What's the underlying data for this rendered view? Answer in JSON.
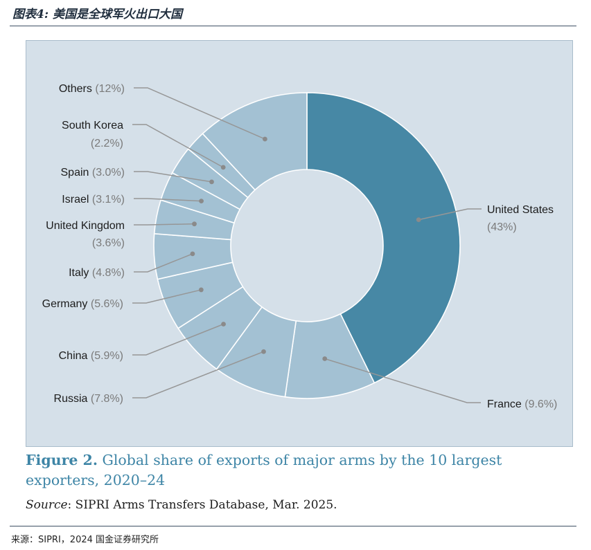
{
  "header": {
    "title": "图表4: 美国是全球军火出口大国"
  },
  "figure": {
    "number": "Figure 2.",
    "caption": "Global share of exports of major arms by the 10 largest exporters, 2020–24"
  },
  "source": {
    "label": "Source",
    "text": ": SIPRI Arms Transfers Database, Mar. 2025."
  },
  "footer": {
    "text": "来源：SIPRI，2024 国金证券研究所"
  },
  "colors": {
    "highlight": "#4788a5",
    "others": "#a3c1d3",
    "panel": "#d5e0e9",
    "leader": "#969696"
  },
  "chart_data": {
    "type": "pie",
    "donut": true,
    "title": "",
    "slices": [
      {
        "name": "United States",
        "value": 43,
        "pct_label": "(43%)"
      },
      {
        "name": "France",
        "value": 9.6,
        "pct_label": "(9.6%)"
      },
      {
        "name": "Russia",
        "value": 7.8,
        "pct_label": "(7.8%)"
      },
      {
        "name": "China",
        "value": 5.9,
        "pct_label": "(5.9%)"
      },
      {
        "name": "Germany",
        "value": 5.6,
        "pct_label": "(5.6%)"
      },
      {
        "name": "Italy",
        "value": 4.8,
        "pct_label": "(4.8%)"
      },
      {
        "name": "United Kingdom",
        "value": 3.6,
        "pct_label": "(3.6%)"
      },
      {
        "name": "Israel",
        "value": 3.1,
        "pct_label": "(3.1%)"
      },
      {
        "name": "Spain",
        "value": 3.0,
        "pct_label": "(3.0%)"
      },
      {
        "name": "South Korea",
        "value": 2.2,
        "pct_label": "(2.2%)"
      },
      {
        "name": "Others",
        "value": 12,
        "pct_label": "(12%)"
      }
    ]
  }
}
